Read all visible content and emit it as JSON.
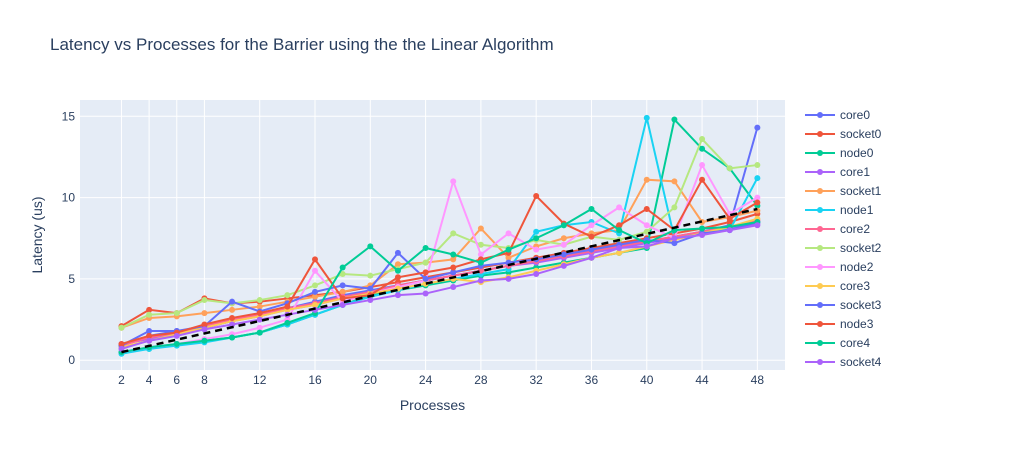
{
  "title": "Latency vs Processes for the Barrier using the the Linear Algorithm",
  "chart_data": {
    "type": "line",
    "title": "Latency vs Processes for the Barrier using the the Linear Algorithm",
    "xlabel": "Processes",
    "ylabel": "Latency (us)",
    "xlim": [
      -1,
      50
    ],
    "ylim": [
      -0.6,
      16
    ],
    "xticks": [
      2,
      4,
      6,
      8,
      12,
      16,
      20,
      24,
      28,
      32,
      36,
      40,
      44,
      48
    ],
    "yticks": [
      0,
      5,
      10,
      15
    ],
    "x": [
      2,
      4,
      6,
      8,
      10,
      12,
      14,
      16,
      18,
      20,
      22,
      24,
      26,
      28,
      30,
      32,
      34,
      36,
      38,
      40,
      42,
      44,
      46,
      48
    ],
    "series": [
      {
        "name": "core0",
        "color": "#636efa",
        "values": [
          0.9,
          1.5,
          1.8,
          2.0,
          2.4,
          2.8,
          3.2,
          3.6,
          4.0,
          4.3,
          4.6,
          4.9,
          5.2,
          5.5,
          5.8,
          6.1,
          6.4,
          6.7,
          7.0,
          7.3,
          7.6,
          7.9,
          8.3,
          14.3
        ]
      },
      {
        "name": "socket0",
        "color": "#ef553b",
        "values": [
          2.1,
          3.1,
          2.9,
          3.8,
          3.5,
          3.6,
          3.8,
          4.0,
          4.2,
          4.5,
          4.8,
          5.1,
          5.4,
          5.7,
          6.0,
          6.3,
          6.6,
          6.9,
          7.2,
          7.5,
          7.8,
          8.1,
          8.5,
          9.0
        ]
      },
      {
        "name": "node0",
        "color": "#00cc96",
        "values": [
          0.5,
          0.7,
          1.0,
          1.2,
          1.4,
          1.7,
          2.2,
          2.8,
          3.4,
          4.0,
          4.3,
          4.6,
          4.9,
          5.2,
          5.4,
          5.7,
          6.0,
          6.3,
          6.6,
          6.9,
          14.8,
          13.0,
          11.8,
          9.5
        ]
      },
      {
        "name": "core1",
        "color": "#ab63fa",
        "values": [
          1.0,
          1.3,
          1.6,
          2.0,
          2.4,
          2.7,
          3.1,
          3.4,
          3.8,
          4.1,
          4.5,
          4.9,
          5.2,
          5.5,
          5.8,
          6.0,
          6.3,
          6.6,
          6.9,
          7.2,
          7.5,
          7.8,
          8.1,
          8.4
        ]
      },
      {
        "name": "socket1",
        "color": "#ffa15a",
        "values": [
          2.0,
          2.6,
          2.7,
          2.9,
          3.1,
          3.3,
          3.6,
          3.9,
          4.2,
          4.6,
          5.9,
          6.0,
          6.2,
          8.1,
          6.3,
          7.0,
          7.5,
          7.8,
          8.0,
          11.1,
          11.0,
          8.5,
          8.8,
          9.2
        ]
      },
      {
        "name": "node1",
        "color": "#19d3f3",
        "values": [
          0.4,
          0.7,
          0.9,
          1.1,
          1.4,
          1.7,
          2.2,
          2.8,
          3.4,
          3.9,
          4.3,
          4.7,
          5.0,
          5.3,
          5.6,
          7.9,
          8.3,
          8.5,
          7.8,
          14.9,
          7.5,
          7.9,
          8.0,
          11.2
        ]
      },
      {
        "name": "core2",
        "color": "#ff6692",
        "values": [
          0.9,
          1.4,
          1.7,
          2.1,
          2.5,
          2.8,
          3.2,
          3.5,
          3.9,
          4.2,
          4.6,
          4.9,
          5.2,
          5.5,
          5.8,
          6.1,
          6.4,
          6.7,
          7.0,
          7.3,
          7.6,
          7.9,
          8.2,
          8.6
        ]
      },
      {
        "name": "socket2",
        "color": "#b6e880",
        "values": [
          2.0,
          2.8,
          2.9,
          3.7,
          3.5,
          3.7,
          4.0,
          4.6,
          5.3,
          5.2,
          5.6,
          6.0,
          7.8,
          7.1,
          6.9,
          7.4,
          7.1,
          7.6,
          7.4,
          7.9,
          9.4,
          13.6,
          11.8,
          12.0
        ]
      },
      {
        "name": "node2",
        "color": "#ff97ff",
        "values": [
          0.5,
          0.8,
          1.0,
          1.3,
          1.6,
          2.0,
          2.5,
          5.5,
          3.6,
          4.1,
          4.5,
          4.9,
          11.0,
          6.5,
          7.8,
          6.8,
          7.1,
          8.3,
          9.4,
          8.3,
          7.5,
          12.0,
          9.0,
          10.0
        ]
      },
      {
        "name": "core3",
        "color": "#fecb52",
        "values": [
          0.8,
          1.2,
          1.6,
          2.0,
          2.4,
          2.7,
          3.1,
          3.4,
          3.8,
          4.1,
          4.4,
          4.7,
          5.0,
          4.8,
          5.1,
          5.5,
          5.9,
          6.3,
          6.6,
          7.0,
          7.4,
          7.8,
          8.2,
          8.7
        ]
      },
      {
        "name": "socket3",
        "color": "#636efa",
        "values": [
          0.9,
          1.8,
          1.8,
          2.1,
          3.6,
          3.0,
          3.5,
          4.2,
          4.6,
          4.4,
          6.6,
          5.0,
          5.4,
          5.8,
          6.0,
          6.2,
          6.5,
          6.8,
          7.1,
          7.4,
          7.2,
          7.8,
          8.0,
          8.5
        ]
      },
      {
        "name": "node3",
        "color": "#ef553b",
        "values": [
          1.0,
          1.5,
          1.7,
          2.2,
          2.6,
          2.9,
          3.3,
          6.2,
          3.8,
          4.0,
          5.1,
          5.4,
          5.7,
          6.2,
          6.6,
          10.1,
          8.4,
          7.6,
          8.3,
          9.3,
          8.0,
          11.1,
          8.7,
          9.7
        ]
      },
      {
        "name": "core4",
        "color": "#00cc96",
        "values": [
          0.5,
          0.8,
          1.0,
          1.2,
          1.4,
          1.7,
          2.3,
          2.9,
          5.7,
          7.0,
          5.5,
          6.9,
          6.5,
          6.0,
          6.8,
          7.5,
          8.3,
          9.3,
          8.0,
          7.2,
          8.0,
          8.1,
          8.2,
          8.5
        ]
      },
      {
        "name": "socket4",
        "color": "#ab63fa",
        "values": [
          0.7,
          1.2,
          1.5,
          1.9,
          2.2,
          2.5,
          2.8,
          3.1,
          3.4,
          3.7,
          4.0,
          4.1,
          4.5,
          4.9,
          5.0,
          5.3,
          5.8,
          6.3,
          6.9,
          7.0,
          7.5,
          7.7,
          8.0,
          8.3
        ]
      }
    ],
    "trend": {
      "style": "dashed",
      "color": "#000000",
      "x": [
        2,
        48
      ],
      "values": [
        0.5,
        9.3
      ]
    },
    "legend_placement": "right",
    "grid": true
  }
}
